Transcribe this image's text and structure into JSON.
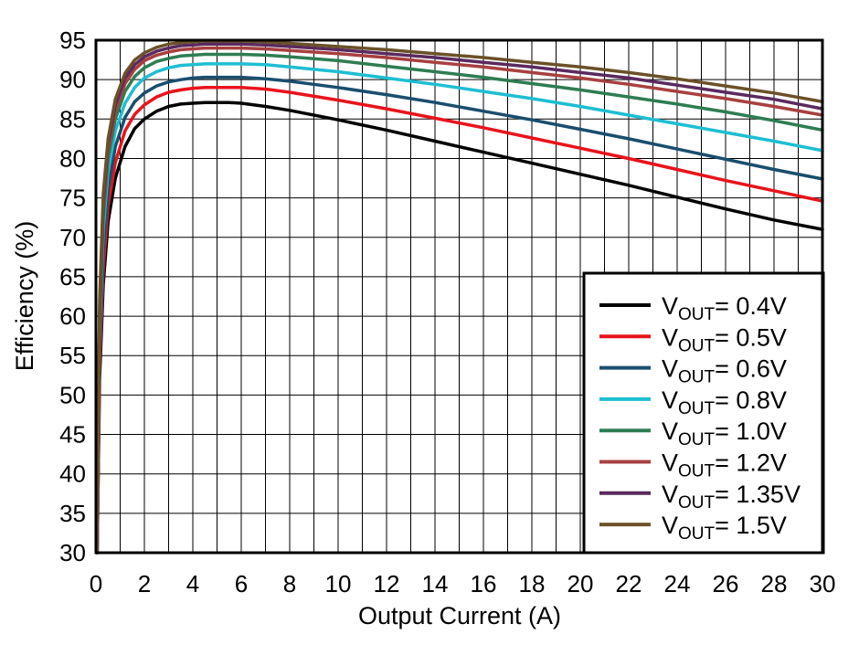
{
  "chart_data": {
    "type": "line",
    "title": "",
    "xlabel": "Output Current (A)",
    "ylabel": "Efficiency (%)",
    "xlim": [
      0,
      30
    ],
    "ylim": [
      30,
      95
    ],
    "x_ticks": [
      0,
      2,
      4,
      6,
      8,
      10,
      12,
      14,
      16,
      18,
      20,
      22,
      24,
      26,
      28,
      30
    ],
    "y_ticks": [
      30,
      35,
      40,
      45,
      50,
      55,
      60,
      65,
      70,
      75,
      80,
      85,
      90,
      95
    ],
    "x_minor_step": 1,
    "grid": true,
    "legend_position": "bottom-right",
    "legend_prefix": "V",
    "legend_subscript": "OUT",
    "series": [
      {
        "name": "VOUT= 0.4V",
        "legend_value": "= 0.4V",
        "color": "#000000",
        "x": [
          0.05,
          0.15,
          0.3,
          0.5,
          0.8,
          1.2,
          1.6,
          2,
          2.5,
          3,
          3.5,
          4,
          4.5,
          5,
          5.5,
          6,
          7,
          8,
          10,
          12,
          14,
          16,
          18,
          20,
          22,
          24,
          26,
          28,
          30
        ],
        "y": [
          30,
          52,
          64,
          72,
          77.5,
          81.5,
          83.8,
          85,
          86,
          86.6,
          86.9,
          87,
          87.1,
          87.1,
          87.1,
          87,
          86.6,
          86.1,
          84.9,
          83.6,
          82.2,
          80.8,
          79.4,
          78,
          76.6,
          75.1,
          73.6,
          72.2,
          71
        ]
      },
      {
        "name": "VOUT= 0.5V",
        "legend_value": "= 0.5V",
        "color": "#e8141c",
        "x": [
          0.05,
          0.15,
          0.3,
          0.5,
          0.8,
          1.2,
          1.6,
          2,
          2.5,
          3,
          3.5,
          4,
          4.5,
          5,
          5.5,
          6,
          7,
          8,
          10,
          12,
          14,
          16,
          18,
          20,
          22,
          24,
          26,
          28,
          30
        ],
        "y": [
          30,
          54,
          66,
          74,
          79.5,
          83.5,
          85.6,
          86.8,
          87.8,
          88.4,
          88.7,
          88.9,
          89,
          89,
          89,
          89,
          88.8,
          88.4,
          87.4,
          86.3,
          85.1,
          83.9,
          82.6,
          81.3,
          80,
          78.6,
          77.2,
          75.9,
          74.6
        ]
      },
      {
        "name": "VOUT= 0.6V",
        "legend_value": "= 0.6V",
        "color": "#1a4e6e",
        "x": [
          0.05,
          0.15,
          0.3,
          0.5,
          0.8,
          1.2,
          1.6,
          2,
          2.5,
          3,
          3.5,
          4,
          4.5,
          5,
          5.5,
          6,
          7,
          8,
          10,
          12,
          14,
          16,
          18,
          20,
          22,
          24,
          26,
          28,
          30
        ],
        "y": [
          30,
          56,
          68,
          76,
          81.5,
          85.2,
          87.2,
          88.3,
          89.2,
          89.7,
          90,
          90.2,
          90.3,
          90.3,
          90.3,
          90.3,
          90.1,
          89.8,
          89,
          88.1,
          87.1,
          86,
          84.9,
          83.7,
          82.5,
          81.2,
          79.9,
          78.6,
          77.4
        ]
      },
      {
        "name": "VOUT= 0.8V",
        "legend_value": "= 0.8V",
        "color": "#1ebed2",
        "x": [
          0.05,
          0.15,
          0.3,
          0.5,
          0.8,
          1.2,
          1.6,
          2,
          2.5,
          3,
          3.5,
          4,
          4.5,
          5,
          5.5,
          6,
          7,
          8,
          10,
          12,
          14,
          16,
          18,
          20,
          22,
          24,
          26,
          28,
          30
        ],
        "y": [
          30,
          58,
          71,
          78.5,
          83.5,
          87,
          89,
          90.2,
          91,
          91.5,
          91.8,
          91.9,
          92,
          92,
          92,
          92,
          91.9,
          91.6,
          91,
          90.2,
          89.4,
          88.5,
          87.6,
          86.6,
          85.5,
          84.4,
          83.3,
          82.2,
          81
        ]
      },
      {
        "name": "VOUT= 1.0V",
        "legend_value": "= 1.0V",
        "color": "#2e7d52",
        "x": [
          0.05,
          0.15,
          0.3,
          0.5,
          0.8,
          1.2,
          1.6,
          2,
          2.5,
          3,
          3.5,
          4,
          4.5,
          5,
          5.5,
          6,
          7,
          8,
          10,
          12,
          14,
          16,
          18,
          20,
          22,
          24,
          26,
          28,
          30
        ],
        "y": [
          30,
          59,
          72.5,
          80,
          85,
          88.5,
          90.4,
          91.5,
          92.3,
          92.7,
          93,
          93.1,
          93.2,
          93.2,
          93.2,
          93.2,
          93.1,
          92.9,
          92.4,
          91.7,
          91,
          90.3,
          89.5,
          88.7,
          87.8,
          86.9,
          85.9,
          84.8,
          83.6
        ]
      },
      {
        "name": "VOUT= 1.2V",
        "legend_value": "= 1.2V",
        "color": "#a84040",
        "x": [
          0.05,
          0.15,
          0.3,
          0.5,
          0.8,
          1.2,
          1.6,
          2,
          2.5,
          3,
          3.5,
          4,
          4.5,
          5,
          5.5,
          6,
          7,
          8,
          10,
          12,
          14,
          16,
          18,
          20,
          22,
          24,
          26,
          28,
          30
        ],
        "y": [
          30,
          60,
          73.5,
          81,
          86,
          89.5,
          91.3,
          92.4,
          93.1,
          93.5,
          93.8,
          93.9,
          94,
          94,
          94,
          94,
          93.9,
          93.7,
          93.3,
          92.8,
          92.2,
          91.6,
          90.9,
          90.2,
          89.4,
          88.5,
          87.6,
          86.6,
          85.5
        ]
      },
      {
        "name": "VOUT= 1.35V",
        "legend_value": "= 1.35V",
        "color": "#5a2a5e",
        "x": [
          0.05,
          0.15,
          0.3,
          0.5,
          0.8,
          1.2,
          1.6,
          2,
          2.5,
          3,
          3.5,
          4,
          4.5,
          5,
          5.5,
          6,
          7,
          8,
          10,
          12,
          14,
          16,
          18,
          20,
          22,
          24,
          26,
          28,
          30
        ],
        "y": [
          30,
          61,
          74.5,
          81.8,
          86.8,
          90.2,
          91.9,
          92.9,
          93.6,
          94,
          94.3,
          94.4,
          94.5,
          94.5,
          94.5,
          94.5,
          94.4,
          94.2,
          93.8,
          93.3,
          92.8,
          92.2,
          91.6,
          90.9,
          90.2,
          89.3,
          88.4,
          87.5,
          86.3
        ]
      },
      {
        "name": "VOUT= 1.5V",
        "legend_value": "= 1.5V",
        "color": "#6b5128",
        "x": [
          0.05,
          0.15,
          0.3,
          0.5,
          0.8,
          1.2,
          1.6,
          2,
          2.5,
          3,
          3.5,
          4,
          4.5,
          5,
          5.5,
          6,
          7,
          8,
          10,
          12,
          14,
          16,
          18,
          20,
          22,
          24,
          26,
          28,
          30
        ],
        "y": [
          30,
          62,
          75.5,
          82.5,
          87.5,
          90.8,
          92.5,
          93.4,
          94.1,
          94.5,
          94.7,
          94.8,
          94.9,
          94.9,
          94.9,
          94.9,
          94.8,
          94.6,
          94.2,
          93.8,
          93.3,
          92.8,
          92.2,
          91.6,
          90.9,
          90.1,
          89.2,
          88.3,
          87.2
        ]
      }
    ]
  }
}
